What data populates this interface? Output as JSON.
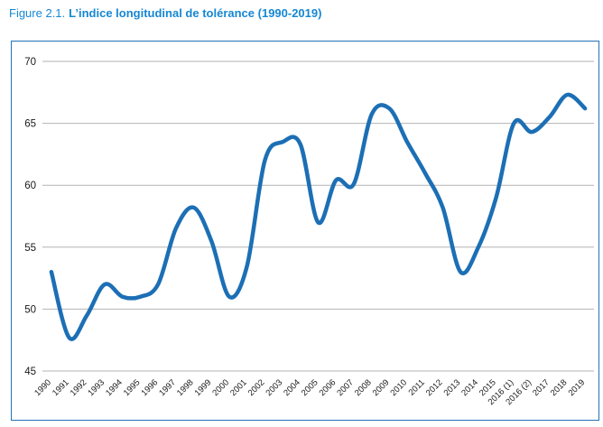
{
  "figure": {
    "title_prefix": "Figure 2.1.",
    "title_main": "L’indice longitudinal de tolérance (1990-2019)",
    "title_color": "#1787d2",
    "border_color": "#2273b9"
  },
  "chart_data": {
    "type": "line",
    "title": "L’indice longitudinal de tolérance (1990-2019)",
    "categories": [
      "1990",
      "1991",
      "1992",
      "1993",
      "1994",
      "1995",
      "1996",
      "1997",
      "1998",
      "1999",
      "2000",
      "2001",
      "2002",
      "2003",
      "2004",
      "2005",
      "2006",
      "2007",
      "2008",
      "2009",
      "2010",
      "2011",
      "2012",
      "2013",
      "2014",
      "2015",
      "2016 (1)",
      "2016 (2)",
      "2017",
      "2018",
      "2019"
    ],
    "series": [
      {
        "name": "Indice longitudinal de tolérance",
        "values": [
          53,
          47.7,
          49.5,
          52,
          51,
          51,
          52,
          56.5,
          58.2,
          55.5,
          51,
          53.5,
          62,
          63.5,
          63.3,
          57,
          60.4,
          60.1,
          65.7,
          66.2,
          63.5,
          61,
          58.2,
          53,
          55,
          59,
          65,
          64.3,
          65.5,
          67.3,
          66.2
        ]
      }
    ],
    "ylim": [
      45,
      70
    ],
    "yticks": [
      45,
      50,
      55,
      60,
      65,
      70
    ],
    "xlabel": "",
    "ylabel": "",
    "grid": "horizontal",
    "legend": "none",
    "line_color": "#1c6fb5",
    "line_width": 4.5,
    "gridline_color": "#b3b3b3",
    "tick_label_color": "#1a1a1a"
  }
}
